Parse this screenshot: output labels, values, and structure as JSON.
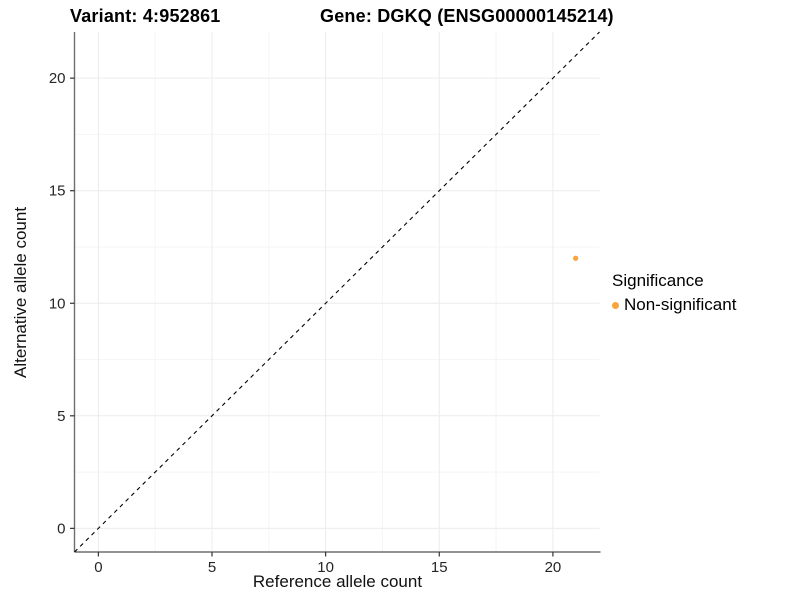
{
  "chart_data": {
    "type": "scatter",
    "titles": {
      "variant": "Variant: 4:952861",
      "gene": "Gene: DGKQ (ENSG00000145214)"
    },
    "xlabel": "Reference allele count",
    "ylabel": "Alternative allele count",
    "xlim": [
      -1.05,
      22.05
    ],
    "ylim": [
      -1.05,
      22.05
    ],
    "xticks": [
      0,
      5,
      10,
      15,
      20
    ],
    "yticks": [
      0,
      5,
      10,
      15,
      20
    ],
    "minor_xticks": [
      2.5,
      7.5,
      12.5,
      17.5
    ],
    "minor_yticks": [
      2.5,
      7.5,
      12.5,
      17.5
    ],
    "grid": "major+minor, very light gray on white",
    "identity_line": {
      "slope": 1,
      "intercept": 0,
      "style": "dashed",
      "color": "#000000"
    },
    "series": [
      {
        "name": "Non-significant",
        "color": "#F9A33C",
        "points": [
          {
            "x": 21,
            "y": 12
          }
        ]
      }
    ],
    "legend": {
      "title": "Significance",
      "position": "right",
      "items": [
        {
          "label": "Non-significant",
          "color": "#F9A33C"
        }
      ]
    }
  },
  "colors": {
    "background": "#FFFFFF",
    "grid_major": "#ECECEC",
    "grid_minor": "#F5F5F5",
    "axis_line": "#6E6E6E",
    "tick_mark": "#333333",
    "tick_label": "#262626",
    "point": "#F9A33C"
  }
}
